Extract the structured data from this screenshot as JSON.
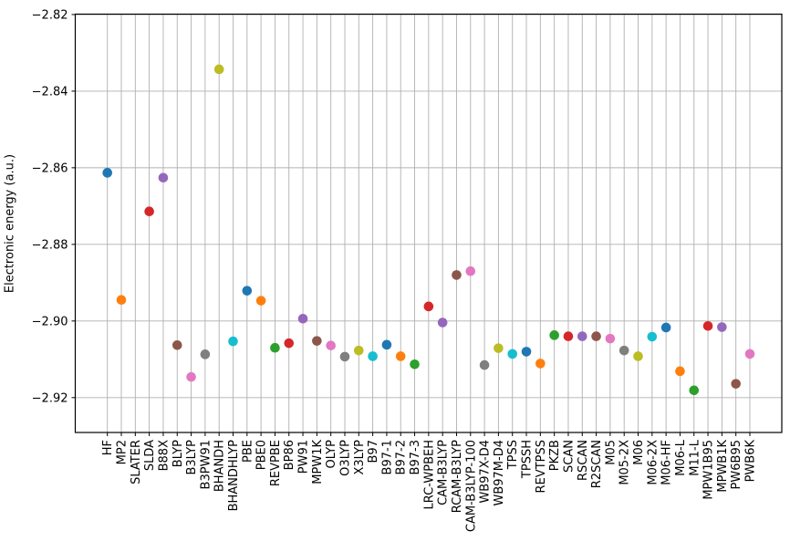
{
  "figure": {
    "ylabel": "Electronic energy (a.u.)"
  },
  "chart_data": {
    "type": "scatter",
    "title": "",
    "xlabel": "",
    "ylabel": "Electronic energy (a.u.)",
    "grid": true,
    "legend_position": "none",
    "categories": [
      "HF",
      "MP2",
      "SLATER",
      "SLDA",
      "B88X",
      "BLYP",
      "B3LYP",
      "B3PW91",
      "BHANDH",
      "BHANDHLYP",
      "PBE",
      "PBE0",
      "REVPBE",
      "BP86",
      "PW91",
      "MPW1K",
      "OLYP",
      "O3LYP",
      "X3LYP",
      "B97",
      "B97-1",
      "B97-2",
      "B97-3",
      "LRC-WPBEH",
      "CAM-B3LYP",
      "RCAM-B3LYP",
      "CAM-B3LYP-100",
      "WB97X-D4",
      "WB97M-D4",
      "TPSS",
      "TPSSH",
      "REVTPSS",
      "PKZB",
      "SCAN",
      "RSCAN",
      "R2SCAN",
      "M05",
      "M05-2X",
      "M06",
      "M06-2X",
      "M06-HF",
      "M06-L",
      "M11-L",
      "MPW1B95",
      "MPWB1K",
      "PW6B95",
      "PWB6K"
    ],
    "values": [
      -2.8613,
      -2.8945,
      null,
      -2.8714,
      -2.8626,
      -2.9063,
      -2.9146,
      -2.9087,
      -2.8343,
      -2.9053,
      -2.8921,
      -2.8947,
      -2.907,
      -2.9058,
      -2.8994,
      -2.9052,
      -2.9064,
      -2.9093,
      -2.9077,
      -2.9092,
      -2.9062,
      -2.9092,
      -2.9113,
      -2.8962,
      -2.9004,
      -2.888,
      -2.887,
      -2.9115,
      -2.9071,
      -2.9086,
      -2.908,
      -2.9111,
      -2.9037,
      -2.904,
      -2.904,
      -2.904,
      -2.9046,
      -2.9077,
      -2.9092,
      -2.9041,
      -2.9017,
      -2.9131,
      -2.9181,
      -2.9013,
      -2.9016,
      -2.9164,
      -2.9086
    ],
    "ylim": [
      -2.9291,
      -2.8199
    ],
    "yticks": [
      -2.82,
      -2.84,
      -2.86,
      -2.88,
      -2.9,
      -2.92
    ],
    "ytick_labels": [
      "−2.82",
      "−2.84",
      "−2.86",
      "−2.88",
      "−2.90",
      "−2.92"
    ],
    "point_color_cycle": [
      "#1f77b4",
      "#ff7f0e",
      "#2ca02c",
      "#d62728",
      "#9467bd",
      "#8c564b",
      "#e377c2",
      "#7f7f7f",
      "#bcbd22",
      "#17becf"
    ],
    "grid_color": "#b0b0b0",
    "axis_color": "#000000"
  }
}
